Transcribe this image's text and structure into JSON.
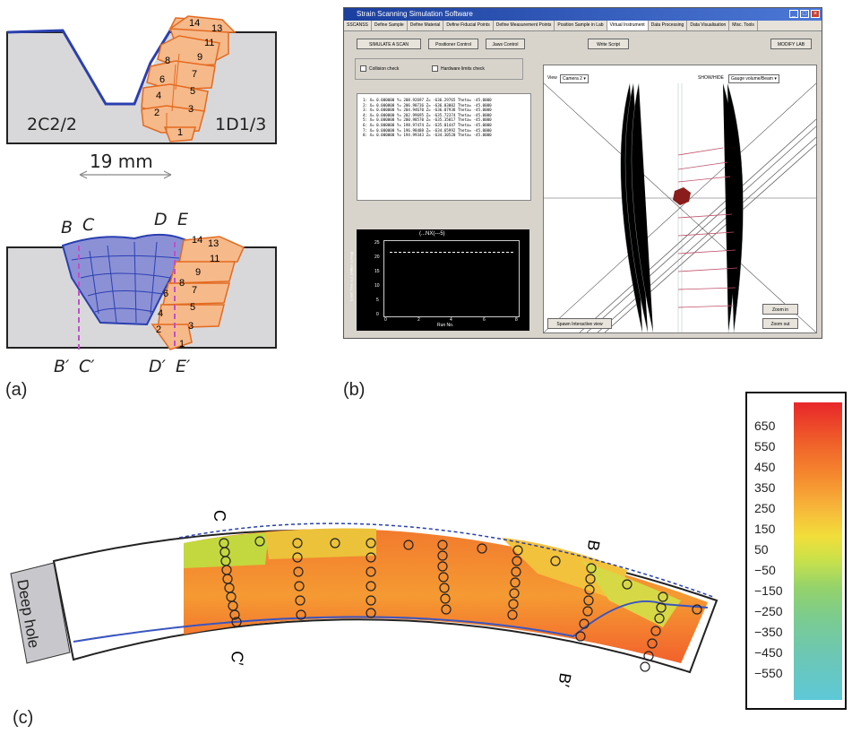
{
  "panel_labels": {
    "a": "(a)",
    "b": "(b)",
    "c": "(c)"
  },
  "weld_top": {
    "left_label": "2C2/2",
    "right_label": "1D1/3",
    "bead_numbers": [
      "1",
      "2",
      "3",
      "4",
      "5",
      "6",
      "7",
      "8",
      "9",
      "11",
      "13",
      "14"
    ],
    "dimension": "19 mm"
  },
  "weld_bottom": {
    "top_labels": [
      "B",
      "C",
      "D",
      "E"
    ],
    "bottom_labels": [
      "B′",
      "C′",
      "D′",
      "E′"
    ],
    "bead_numbers": [
      "1",
      "2",
      "3",
      "4",
      "5",
      "6",
      "7",
      "8",
      "9",
      "11",
      "13",
      "14"
    ]
  },
  "software": {
    "title": "Strain Scanning Simulation Software",
    "tabs": [
      "SSCANSS",
      "Define Sample",
      "Define Material",
      "Define Fiducial Points",
      "Define Measurement Points",
      "Position Sample in Lab",
      "Virtual Instrument",
      "Data Processing",
      "Data Visualisation",
      "Misc. Tools"
    ],
    "active_tab": "Virtual Instrument",
    "buttons": [
      "SIMULATE A SCAN",
      "Positioner Control",
      "Jaws Control",
      "Write Script",
      "MODIFY LAB"
    ],
    "checks": [
      "Collision check",
      "Hardware limits check"
    ],
    "log_lines": [
      "1:  X= 0.000000  Y= 208.92697  Z= -636.29765  Theta= -45.0000",
      "2:  X= 0.000000  Y= 206.90736  Z= -636.03002  Theta= -45.0000",
      "3:  X= 0.000000  Y= 204.94670  Z= -636.07938  Theta= -45.0000",
      "4:  X= 0.000000  Y= 202.99695  Z= -635.72374  Theta= -45.0000",
      "5:  X= 0.000000  Y= 200.98570  Z= -635.35817  Theta= -45.0000",
      "6:  X= 0.000000  Y= 198.97474  Z= -635.01447  Theta= -45.0000",
      "7:  X= 0.000000  Y= 196.98488  Z= -634.65992  Theta= -45.0000",
      "8:  X= 0.000000  Y= 194.99343  Z= -634.30520  Theta= -45.0000"
    ],
    "mini_plot": {
      "title": "(...NX(---5)",
      "xlabel": "Run No.",
      "ylabel": "Count Time a.u. (Million u.mag)",
      "xticks": [
        "0",
        "2",
        "4",
        "6",
        "8"
      ],
      "yticks": [
        "0",
        "5",
        "10",
        "15",
        "20",
        "25"
      ]
    },
    "view_label": "View",
    "view_select": "Camera 2",
    "show_label": "SHOW/HIDE",
    "show_select": "Gauge volume/Beam",
    "zoom_in": "Zoom in",
    "zoom_out": "Zoom out",
    "spawn": "Spawn Interactive view"
  },
  "map": {
    "deep_hole": "Deep hole",
    "labels": {
      "C": "C",
      "C_prime": "C′",
      "B": "B",
      "B_prime": "B′"
    }
  },
  "colorbar": {
    "ticks": [
      "650",
      "550",
      "450",
      "350",
      "250",
      "150",
      "50",
      "−50",
      "−150",
      "−250",
      "−350",
      "−450",
      "−550"
    ],
    "colors": [
      "#e8262a",
      "#f58a2e",
      "#f2de3a",
      "#95d36a",
      "#5ec8d8"
    ]
  }
}
